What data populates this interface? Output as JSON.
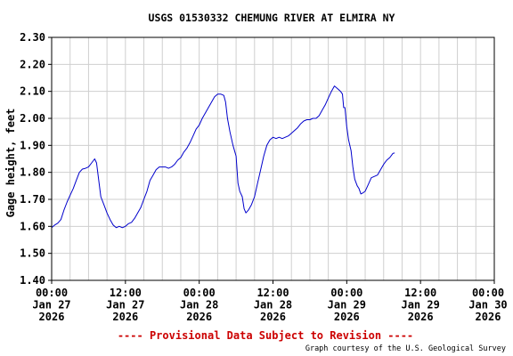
{
  "chart_data": {
    "type": "line",
    "title": "USGS 01530332 CHEMUNG RIVER AT ELMIRA NY",
    "ylabel": "Gage height, feet",
    "xlabel": "",
    "ylim": [
      1.4,
      2.3
    ],
    "yticks": [
      "1.40",
      "1.50",
      "1.60",
      "1.70",
      "1.80",
      "1.90",
      "2.00",
      "2.10",
      "2.20",
      "2.30"
    ],
    "xlim_hours": [
      0,
      72
    ],
    "xticks": [
      {
        "hour": 0,
        "lines": [
          "00:00",
          "Jan 27",
          "2026"
        ]
      },
      {
        "hour": 12,
        "lines": [
          "12:00",
          "Jan 27",
          "2026"
        ]
      },
      {
        "hour": 24,
        "lines": [
          "00:00",
          "Jan 28",
          "2026"
        ]
      },
      {
        "hour": 36,
        "lines": [
          "12:00",
          "Jan 28",
          "2026"
        ]
      },
      {
        "hour": 48,
        "lines": [
          "00:00",
          "Jan 29",
          "2026"
        ]
      },
      {
        "hour": 60,
        "lines": [
          "12:00",
          "Jan 29",
          "2026"
        ]
      },
      {
        "hour": 72,
        "lines": [
          "00:00",
          "Jan 30",
          "2026"
        ]
      }
    ],
    "grid": true,
    "line_color": "#0000cc",
    "series": [
      {
        "points": [
          [
            0.0,
            1.595
          ],
          [
            0.5,
            1.605
          ],
          [
            1.0,
            1.612
          ],
          [
            1.5,
            1.625
          ],
          [
            2.0,
            1.66
          ],
          [
            2.5,
            1.69
          ],
          [
            3.0,
            1.715
          ],
          [
            3.5,
            1.74
          ],
          [
            4.0,
            1.77
          ],
          [
            4.5,
            1.8
          ],
          [
            5.0,
            1.812
          ],
          [
            5.5,
            1.815
          ],
          [
            6.0,
            1.82
          ],
          [
            6.5,
            1.835
          ],
          [
            7.0,
            1.85
          ],
          [
            7.3,
            1.835
          ],
          [
            7.6,
            1.78
          ],
          [
            8.0,
            1.71
          ],
          [
            8.5,
            1.68
          ],
          [
            9.0,
            1.65
          ],
          [
            9.5,
            1.625
          ],
          [
            10.0,
            1.605
          ],
          [
            10.5,
            1.595
          ],
          [
            11.0,
            1.6
          ],
          [
            11.5,
            1.595
          ],
          [
            12.0,
            1.6
          ],
          [
            12.5,
            1.61
          ],
          [
            13.0,
            1.615
          ],
          [
            13.5,
            1.63
          ],
          [
            14.0,
            1.65
          ],
          [
            14.5,
            1.67
          ],
          [
            15.0,
            1.7
          ],
          [
            15.5,
            1.73
          ],
          [
            16.0,
            1.77
          ],
          [
            16.5,
            1.79
          ],
          [
            17.0,
            1.81
          ],
          [
            17.5,
            1.82
          ],
          [
            18.0,
            1.82
          ],
          [
            18.5,
            1.82
          ],
          [
            19.0,
            1.815
          ],
          [
            19.5,
            1.82
          ],
          [
            20.0,
            1.83
          ],
          [
            20.5,
            1.845
          ],
          [
            21.0,
            1.855
          ],
          [
            21.5,
            1.875
          ],
          [
            22.0,
            1.89
          ],
          [
            22.5,
            1.91
          ],
          [
            23.0,
            1.935
          ],
          [
            23.5,
            1.96
          ],
          [
            24.0,
            1.975
          ],
          [
            24.5,
            2.0
          ],
          [
            25.0,
            2.02
          ],
          [
            25.5,
            2.04
          ],
          [
            26.0,
            2.06
          ],
          [
            26.5,
            2.08
          ],
          [
            27.0,
            2.09
          ],
          [
            27.5,
            2.09
          ],
          [
            28.0,
            2.085
          ],
          [
            28.3,
            2.06
          ],
          [
            28.6,
            2.0
          ],
          [
            29.0,
            1.95
          ],
          [
            29.5,
            1.9
          ],
          [
            30.0,
            1.86
          ],
          [
            30.3,
            1.76
          ],
          [
            30.6,
            1.73
          ],
          [
            31.0,
            1.71
          ],
          [
            31.3,
            1.665
          ],
          [
            31.6,
            1.65
          ],
          [
            32.0,
            1.66
          ],
          [
            32.5,
            1.68
          ],
          [
            33.0,
            1.71
          ],
          [
            33.5,
            1.76
          ],
          [
            34.0,
            1.81
          ],
          [
            34.5,
            1.86
          ],
          [
            35.0,
            1.9
          ],
          [
            35.5,
            1.92
          ],
          [
            36.0,
            1.93
          ],
          [
            36.5,
            1.925
          ],
          [
            37.0,
            1.93
          ],
          [
            37.5,
            1.925
          ],
          [
            38.0,
            1.93
          ],
          [
            38.5,
            1.935
          ],
          [
            39.0,
            1.945
          ],
          [
            39.5,
            1.955
          ],
          [
            40.0,
            1.965
          ],
          [
            40.5,
            1.98
          ],
          [
            41.0,
            1.99
          ],
          [
            41.5,
            1.995
          ],
          [
            42.0,
            1.995
          ],
          [
            42.5,
            2.0
          ],
          [
            43.0,
            2.0
          ],
          [
            43.5,
            2.01
          ],
          [
            44.0,
            2.03
          ],
          [
            44.5,
            2.05
          ],
          [
            45.0,
            2.075
          ],
          [
            45.5,
            2.1
          ],
          [
            46.0,
            2.12
          ],
          [
            46.5,
            2.11
          ],
          [
            47.0,
            2.1
          ],
          [
            47.3,
            2.09
          ],
          [
            47.5,
            2.04
          ],
          [
            47.7,
            2.04
          ],
          [
            48.0,
            1.97
          ],
          [
            48.3,
            1.92
          ],
          [
            48.7,
            1.88
          ],
          [
            49.0,
            1.82
          ],
          [
            49.3,
            1.775
          ],
          [
            49.7,
            1.75
          ],
          [
            50.0,
            1.74
          ],
          [
            50.3,
            1.72
          ],
          [
            50.7,
            1.725
          ],
          [
            51.0,
            1.73
          ],
          [
            51.5,
            1.755
          ],
          [
            52.0,
            1.78
          ],
          [
            52.5,
            1.785
          ],
          [
            53.0,
            1.79
          ],
          [
            53.5,
            1.81
          ],
          [
            54.0,
            1.83
          ],
          [
            54.5,
            1.845
          ],
          [
            55.0,
            1.855
          ],
          [
            55.5,
            1.87
          ],
          [
            55.8,
            1.872
          ]
        ]
      }
    ]
  },
  "footer": {
    "provisional_text": "---- Provisional Data Subject to Revision ----",
    "courtesy_text": "Graph courtesy of the U.S. Geological Survey"
  },
  "colors": {
    "axis": "#000000",
    "grid": "#cfcfcf",
    "provisional": "#cc0000"
  }
}
